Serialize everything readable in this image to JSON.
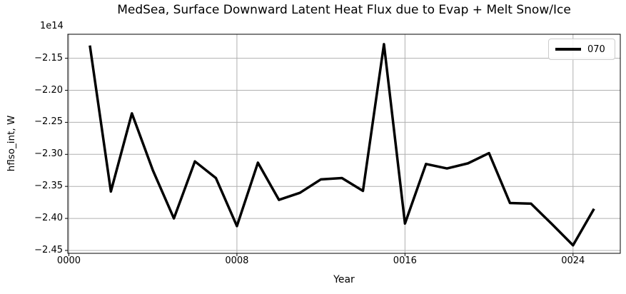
{
  "colors": {
    "background": "#ffffff",
    "text": "#000000",
    "line": "#000000",
    "grid": "#b0b0b0",
    "spine": "#000000",
    "legend_border": "#cccccc"
  },
  "chart_data": {
    "type": "line",
    "title": "MedSea, Surface Downward Latent Heat Flux due to Evap + Melt Snow/Ice",
    "xlabel": "Year",
    "ylabel": "hflso_int, W",
    "y_offset_text": "1e14",
    "values_unit": "x 1e14 W",
    "x": [
      1,
      2,
      3,
      4,
      5,
      6,
      7,
      8,
      9,
      10,
      11,
      12,
      13,
      14,
      15,
      16,
      17,
      18,
      19,
      20,
      21,
      22,
      23,
      24,
      25
    ],
    "series": [
      {
        "name": "070",
        "color": "#000000",
        "values": [
          -2.13,
          -2.358,
          -2.236,
          -2.325,
          -2.4,
          -2.311,
          -2.337,
          -2.412,
          -2.313,
          -2.371,
          -2.36,
          -2.339,
          -2.337,
          -2.357,
          -2.128,
          -2.408,
          -2.315,
          -2.322,
          -2.314,
          -2.298,
          -2.376,
          -2.377,
          -2.409,
          -2.442,
          -2.385
        ]
      }
    ],
    "xlim": [
      -0.05,
      26.25
    ],
    "ylim": [
      -2.4545,
      -2.1125
    ],
    "xticks": {
      "values": [
        0,
        8,
        16,
        24
      ],
      "labels": [
        "0000",
        "0008",
        "0016",
        "0024"
      ]
    },
    "yticks": {
      "values": [
        -2.15,
        -2.2,
        -2.25,
        -2.3,
        -2.35,
        -2.4,
        -2.45
      ],
      "labels": [
        "−2.15",
        "−2.20",
        "−2.25",
        "−2.30",
        "−2.35",
        "−2.40",
        "−2.45"
      ]
    },
    "grid": true,
    "line_width": 3.5,
    "legend": {
      "position": "upper right",
      "entries": [
        "070"
      ]
    }
  }
}
